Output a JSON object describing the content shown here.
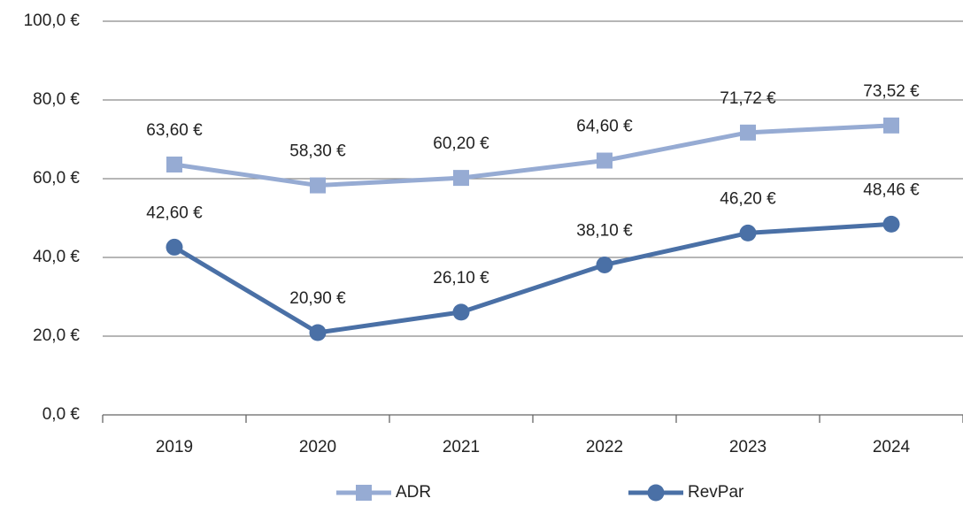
{
  "chart_data": {
    "type": "line",
    "categories": [
      "2019",
      "2020",
      "2021",
      "2022",
      "2023",
      "2024"
    ],
    "series": [
      {
        "name": "ADR",
        "color": "#96abd3",
        "marker": "square",
        "values": [
          63.6,
          58.3,
          60.2,
          64.6,
          71.72,
          73.52
        ],
        "value_labels": [
          "63,60 €",
          "58,30 €",
          "60,20 €",
          "64,60 €",
          "71,72 €",
          "73,52 €"
        ]
      },
      {
        "name": "RevPar",
        "color": "#4a70a6",
        "marker": "circle",
        "values": [
          42.6,
          20.9,
          26.1,
          38.1,
          46.2,
          48.46
        ],
        "value_labels": [
          "42,60 €",
          "20,90 €",
          "26,10 €",
          "38,10 €",
          "46,20 €",
          "48,46 €"
        ]
      }
    ],
    "ylim": [
      0,
      100
    ],
    "yticks": [
      {
        "value": 0,
        "label": "0,0 €"
      },
      {
        "value": 20,
        "label": "20,0 €"
      },
      {
        "value": 40,
        "label": "40,0 €"
      },
      {
        "value": 60,
        "label": "60,0 €"
      },
      {
        "value": 80,
        "label": "80,0 €"
      },
      {
        "value": 100,
        "label": "100,0 €"
      }
    ],
    "grid": true,
    "legend": "bottom"
  }
}
